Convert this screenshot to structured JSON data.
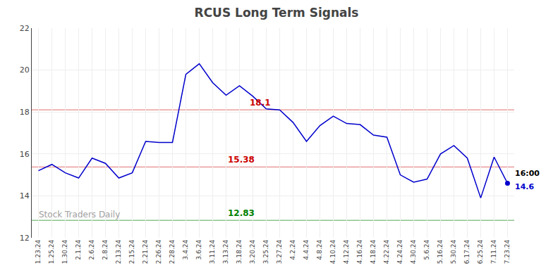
{
  "chart_data": {
    "type": "line",
    "title": "RCUS Long Term Signals",
    "categories": [
      "1.23.24",
      "1.25.24",
      "1.30.24",
      "2.1.24",
      "2.6.24",
      "2.8.24",
      "2.13.24",
      "2.15.24",
      "2.21.24",
      "2.26.24",
      "2.28.24",
      "3.4.24",
      "3.6.24",
      "3.11.24",
      "3.13.24",
      "3.18.24",
      "3.20.24",
      "3.25.24",
      "3.27.24",
      "4.2.24",
      "4.4.24",
      "4.8.24",
      "4.10.24",
      "4.12.24",
      "4.16.24",
      "4.18.24",
      "4.22.24",
      "4.24.24",
      "4.30.24",
      "5.6.24",
      "5.16.24",
      "5.30.24",
      "6.17.24",
      "6.25.24",
      "7.11.24",
      "7.23.24"
    ],
    "values": [
      15.2,
      15.5,
      15.1,
      14.85,
      15.8,
      15.55,
      14.85,
      15.1,
      16.6,
      16.55,
      16.55,
      19.8,
      20.3,
      19.4,
      18.8,
      19.25,
      18.75,
      18.15,
      18.1,
      17.5,
      16.6,
      17.35,
      17.8,
      17.45,
      17.4,
      16.9,
      16.8,
      15.0,
      14.65,
      14.8,
      16.0,
      16.4,
      15.8,
      13.9,
      15.85,
      14.6
    ],
    "color": "#0000cc",
    "ylim": [
      12,
      22
    ],
    "yticks": [
      12,
      14,
      16,
      18,
      20,
      22
    ],
    "grid": true,
    "hlines": [
      {
        "value": 18.1,
        "label": "18.1",
        "color": "#cc0000"
      },
      {
        "value": 15.38,
        "label": "15.38",
        "color": "#cc0000"
      },
      {
        "value": 12.83,
        "label": "12.83",
        "color": "#008000"
      }
    ],
    "last_point": {
      "label": "16:00",
      "value_label": "14.6"
    },
    "watermark": "Stock Traders Daily"
  }
}
